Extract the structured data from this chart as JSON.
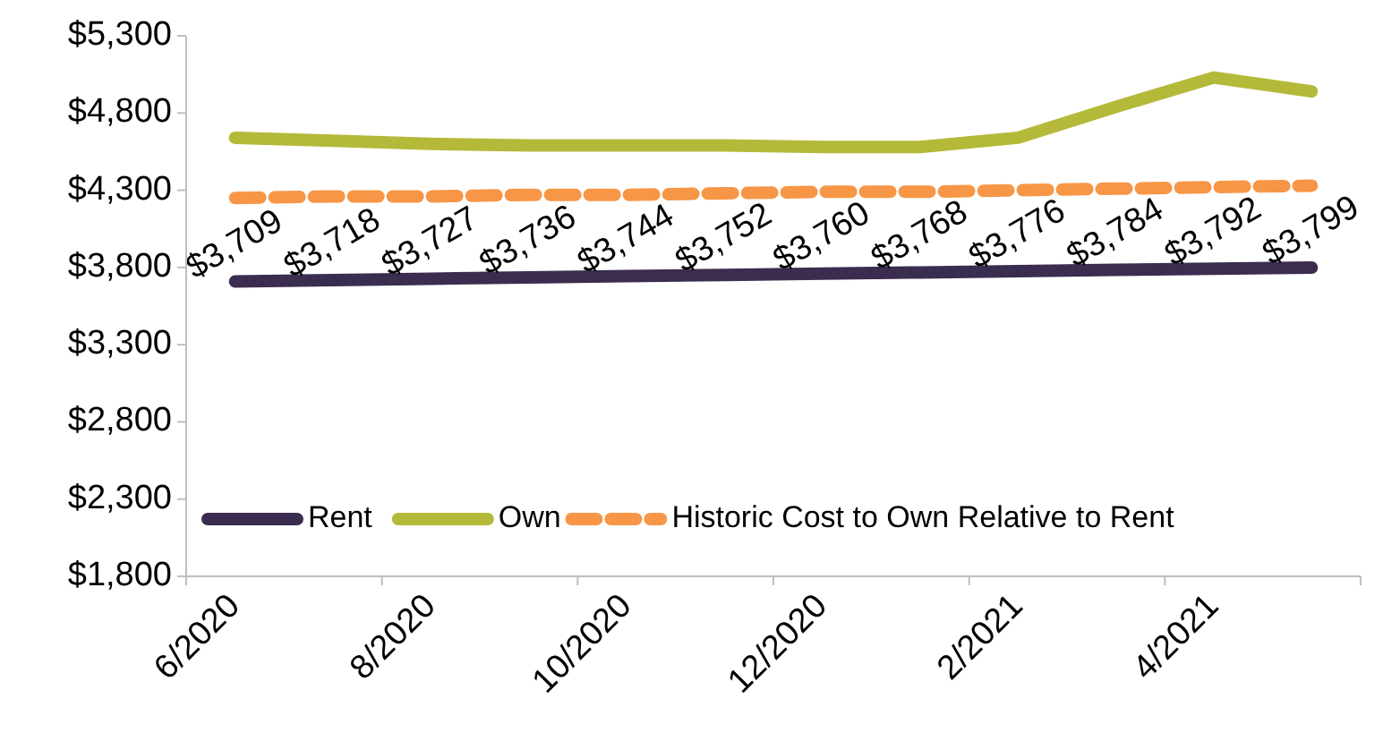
{
  "chart_data": {
    "type": "line",
    "categories": [
      "6/2020",
      null,
      "8/2020",
      null,
      "10/2020",
      null,
      "12/2020",
      null,
      "2/2021",
      null,
      "4/2021",
      null
    ],
    "series": [
      {
        "name": "Rent",
        "color": "#3b2d4f",
        "values": [
          3709,
          3718,
          3727,
          3736,
          3744,
          3752,
          3760,
          3768,
          3776,
          3784,
          3792,
          3799
        ],
        "value_labels": [
          "$3,709",
          "$3,718",
          "$3,727",
          "$3,736",
          "$3,744",
          "$3,752",
          "$3,760",
          "$3,768",
          "$3,776",
          "$3,784",
          "$3,792",
          "$3,799"
        ]
      },
      {
        "name": "Own",
        "color": "#b5b93a",
        "values": [
          4640,
          4620,
          4600,
          4590,
          4590,
          4590,
          4580,
          4580,
          4640,
          4840,
          5030,
          4940
        ]
      },
      {
        "name": "Historic Cost to Own Relative to Rent",
        "color": "#f79646",
        "line_style": "dashed",
        "values": [
          4250,
          4260,
          4260,
          4270,
          4270,
          4280,
          4290,
          4290,
          4300,
          4310,
          4320,
          4330
        ]
      }
    ],
    "ylim": [
      1800,
      5300
    ],
    "yticks": [
      {
        "value": 1800,
        "label": "$1,800"
      },
      {
        "value": 2300,
        "label": "$2,300"
      },
      {
        "value": 2800,
        "label": "$2,800"
      },
      {
        "value": 3300,
        "label": "$3,300"
      },
      {
        "value": 3800,
        "label": "$3,800"
      },
      {
        "value": 4300,
        "label": "$4,300"
      },
      {
        "value": 4800,
        "label": "$4,800"
      },
      {
        "value": 5300,
        "label": "$5,300"
      }
    ],
    "grid": false,
    "legend": "bottom",
    "marker": "none"
  }
}
